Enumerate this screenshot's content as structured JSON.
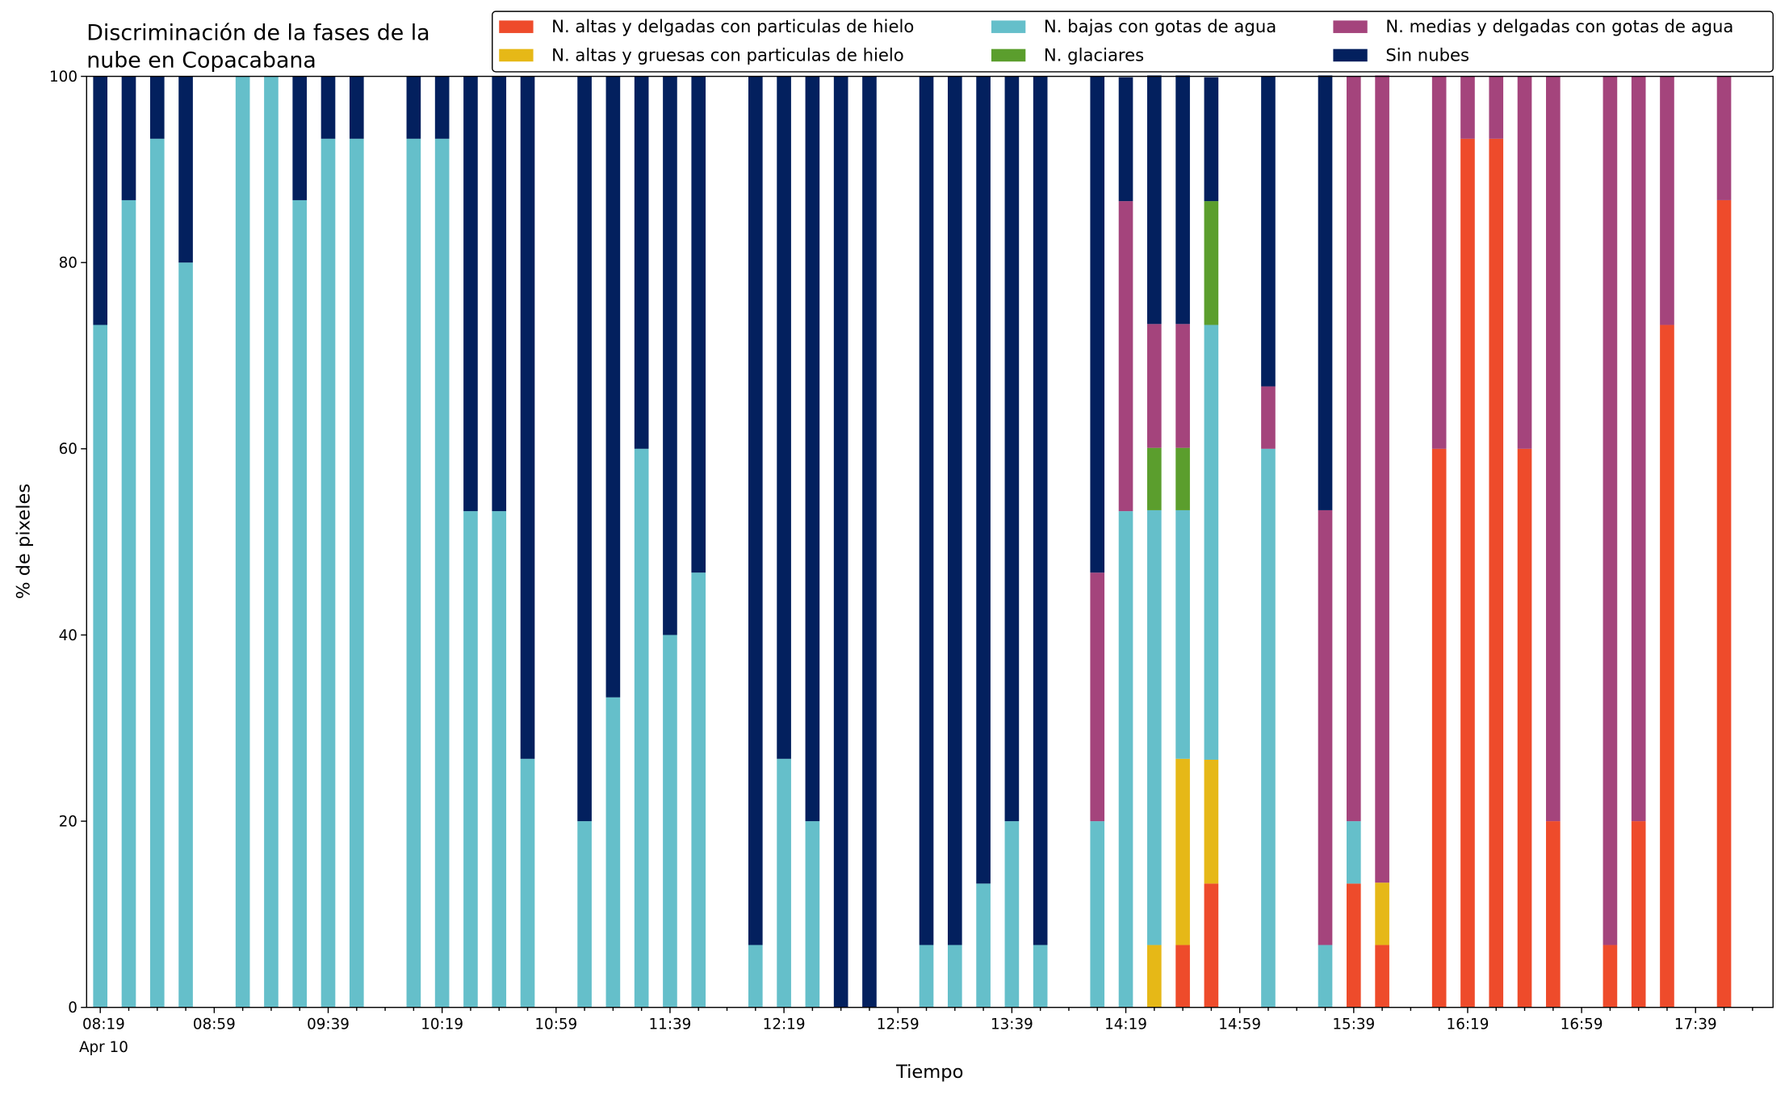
{
  "chart_data": {
    "type": "stacked_bar",
    "title": [
      "Discriminación de la fases de la",
      "nube en Copacabana"
    ],
    "xlabel": "Tiempo",
    "ylabel": "% de pixeles",
    "x_sublabel": "Apr 10",
    "categories": [
      "08:19",
      null,
      null,
      null,
      "08:59",
      null,
      null,
      null,
      "09:39",
      null,
      null,
      null,
      "10:19",
      null,
      null,
      null,
      "10:59",
      null,
      null,
      null,
      "11:39",
      null,
      null,
      null,
      "12:19",
      null,
      null,
      null,
      "12:59",
      null,
      null,
      null,
      "13:39",
      null,
      null,
      null,
      "14:19",
      null,
      null,
      null,
      "14:59",
      null,
      null,
      null,
      "15:39",
      null,
      null,
      null,
      "16:19",
      null,
      null,
      null,
      "16:59",
      null,
      null,
      null,
      "17:39",
      null,
      null
    ],
    "ylim": [
      0,
      100
    ],
    "yticks": [
      0,
      20,
      40,
      60,
      80,
      100
    ],
    "legend": "top",
    "series": [
      {
        "name": "N. altas y delgadas con particulas de hielo",
        "color": "#ee4b2b",
        "values": [
          0,
          0,
          0,
          0,
          null,
          0,
          0,
          0,
          0,
          0,
          null,
          0,
          0,
          0,
          0,
          0,
          null,
          0,
          0,
          0,
          0,
          0,
          null,
          0,
          0,
          0,
          0,
          0,
          null,
          0,
          0,
          0,
          0,
          0,
          null,
          0,
          0,
          0,
          6.7,
          13.3,
          null,
          0,
          null,
          0,
          13.3,
          6.7,
          null,
          60,
          93.3,
          93.3,
          60,
          20,
          null,
          6.7,
          20,
          73.3,
          null,
          86.7,
          null
        ]
      },
      {
        "name": "N. altas y gruesas con particulas de hielo",
        "color": "#e6b817",
        "values": [
          0,
          0,
          0,
          0,
          null,
          0,
          0,
          0,
          0,
          0,
          null,
          0,
          0,
          0,
          0,
          0,
          null,
          0,
          0,
          0,
          0,
          0,
          null,
          0,
          0,
          0,
          0,
          0,
          null,
          0,
          0,
          0,
          0,
          0,
          null,
          0,
          0,
          6.7,
          20,
          13.3,
          null,
          0,
          null,
          0,
          0,
          6.7,
          null,
          0,
          0,
          0,
          0,
          0,
          null,
          0,
          0,
          0,
          null,
          0,
          null
        ]
      },
      {
        "name": "N. bajas con gotas de agua",
        "color": "#65bfca",
        "values": [
          73.3,
          86.7,
          93.3,
          80,
          null,
          100,
          100,
          86.7,
          93.3,
          93.3,
          null,
          93.3,
          93.3,
          53.3,
          53.3,
          26.7,
          null,
          20,
          33.3,
          60,
          40,
          46.7,
          null,
          6.7,
          26.7,
          20,
          0,
          0,
          null,
          6.7,
          6.7,
          13.3,
          20,
          6.7,
          null,
          20,
          53.3,
          46.7,
          26.7,
          46.7,
          null,
          60,
          null,
          6.7,
          6.7,
          0,
          null,
          0,
          0,
          0,
          0,
          0,
          null,
          0,
          0,
          0,
          null,
          0,
          null
        ]
      },
      {
        "name": "N. glaciares",
        "color": "#5b9e2d",
        "values": [
          0,
          0,
          0,
          0,
          null,
          0,
          0,
          0,
          0,
          0,
          null,
          0,
          0,
          0,
          0,
          0,
          null,
          0,
          0,
          0,
          0,
          0,
          null,
          0,
          0,
          0,
          0,
          0,
          null,
          0,
          0,
          0,
          0,
          0,
          null,
          0,
          0,
          6.7,
          6.7,
          13.3,
          null,
          0,
          null,
          0,
          0,
          0,
          null,
          0,
          0,
          0,
          0,
          0,
          null,
          0,
          0,
          0,
          null,
          0,
          null
        ]
      },
      {
        "name": "N. medias y delgadas con gotas de agua",
        "color": "#a4447c",
        "values": [
          0,
          0,
          0,
          0,
          null,
          0,
          0,
          0,
          0,
          0,
          null,
          0,
          0,
          0,
          0,
          0,
          null,
          0,
          0,
          0,
          0,
          0,
          null,
          0,
          0,
          0,
          0,
          0,
          null,
          0,
          0,
          0,
          0,
          0,
          null,
          26.7,
          33.3,
          13.3,
          13.3,
          0,
          null,
          6.7,
          null,
          46.7,
          80,
          86.7,
          null,
          40,
          6.7,
          6.7,
          40,
          80,
          null,
          93.3,
          80,
          26.7,
          null,
          13.3,
          null
        ]
      },
      {
        "name": "Sin nubes",
        "color": "#03205e",
        "values": [
          26.7,
          13.3,
          6.7,
          20,
          null,
          0,
          0,
          13.3,
          6.7,
          6.7,
          null,
          6.7,
          6.7,
          46.7,
          46.7,
          73.3,
          null,
          80,
          66.7,
          40,
          60,
          53.3,
          null,
          93.3,
          73.3,
          80,
          100,
          100,
          null,
          93.3,
          93.3,
          86.7,
          80,
          93.3,
          null,
          53.3,
          13.3,
          26.7,
          26.7,
          13.3,
          null,
          33.3,
          null,
          46.7,
          0,
          0,
          null,
          0,
          0,
          0,
          0,
          0,
          null,
          0,
          0,
          0,
          null,
          0,
          null
        ]
      }
    ]
  }
}
